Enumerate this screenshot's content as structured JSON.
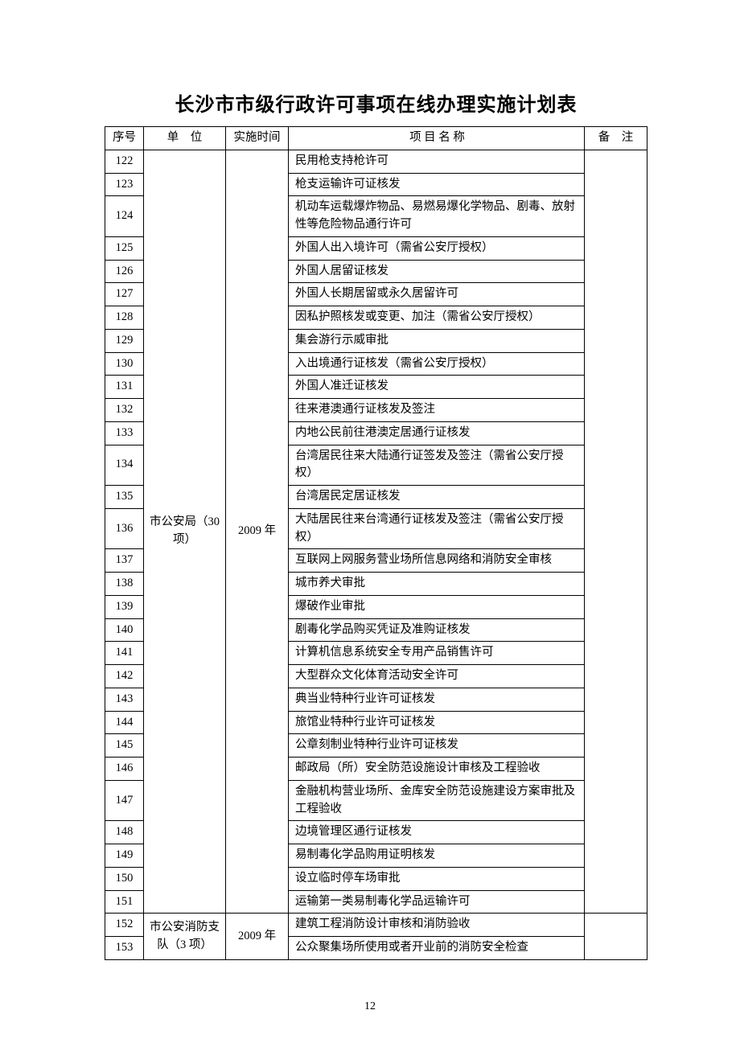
{
  "title": "长沙市市级行政许可事项在线办理实施计划表",
  "headers": {
    "seq": "序号",
    "unit": "单　位",
    "time": "实施时间",
    "name": "项 目 名 称",
    "remark": "备　注"
  },
  "groups": [
    {
      "unit": "市公安局（30 项）",
      "time": "2009 年",
      "rows": [
        {
          "seq": "122",
          "name": "民用枪支持枪许可"
        },
        {
          "seq": "123",
          "name": "枪支运输许可证核发"
        },
        {
          "seq": "124",
          "name": "机动车运载爆炸物品、易燃易爆化学物品、剧毒、放射性等危险物品通行许可"
        },
        {
          "seq": "125",
          "name": "外国人出入境许可（需省公安厅授权）"
        },
        {
          "seq": "126",
          "name": "外国人居留证核发"
        },
        {
          "seq": "127",
          "name": "外国人长期居留或永久居留许可"
        },
        {
          "seq": "128",
          "name": "因私护照核发或变更、加注（需省公安厅授权）"
        },
        {
          "seq": "129",
          "name": "集会游行示威审批"
        },
        {
          "seq": "130",
          "name": "入出境通行证核发（需省公安厅授权）"
        },
        {
          "seq": "131",
          "name": "外国人准迁证核发"
        },
        {
          "seq": "132",
          "name": "往来港澳通行证核发及签注"
        },
        {
          "seq": "133",
          "name": "内地公民前往港澳定居通行证核发"
        },
        {
          "seq": "134",
          "name": "台湾居民往来大陆通行证签发及签注（需省公安厅授权）"
        },
        {
          "seq": "135",
          "name": "台湾居民定居证核发"
        },
        {
          "seq": "136",
          "name": "大陆居民往来台湾通行证核发及签注（需省公安厅授权）"
        },
        {
          "seq": "137",
          "name": "互联网上网服务营业场所信息网络和消防安全审核"
        },
        {
          "seq": "138",
          "name": "城市养犬审批"
        },
        {
          "seq": "139",
          "name": "爆破作业审批"
        },
        {
          "seq": "140",
          "name": "剧毒化学品购买凭证及准购证核发"
        },
        {
          "seq": "141",
          "name": "计算机信息系统安全专用产品销售许可"
        },
        {
          "seq": "142",
          "name": "大型群众文化体育活动安全许可"
        },
        {
          "seq": "143",
          "name": "典当业特种行业许可证核发"
        },
        {
          "seq": "144",
          "name": "旅馆业特种行业许可证核发"
        },
        {
          "seq": "145",
          "name": "公章刻制业特种行业许可证核发"
        },
        {
          "seq": "146",
          "name": "邮政局（所）安全防范设施设计审核及工程验收"
        },
        {
          "seq": "147",
          "name": "金融机构营业场所、金库安全防范设施建设方案审批及工程验收"
        },
        {
          "seq": "148",
          "name": "边境管理区通行证核发"
        },
        {
          "seq": "149",
          "name": "易制毒化学品购用证明核发"
        },
        {
          "seq": "150",
          "name": "设立临时停车场审批"
        },
        {
          "seq": "151",
          "name": "运输第一类易制毒化学品运输许可"
        }
      ]
    },
    {
      "unit": "市公安消防支队（3 项）",
      "time": "2009 年",
      "rows": [
        {
          "seq": "152",
          "name": "建筑工程消防设计审核和消防验收"
        },
        {
          "seq": "153",
          "name": "公众聚集场所使用或者开业前的消防安全检查"
        }
      ]
    }
  ],
  "page_number": "12"
}
